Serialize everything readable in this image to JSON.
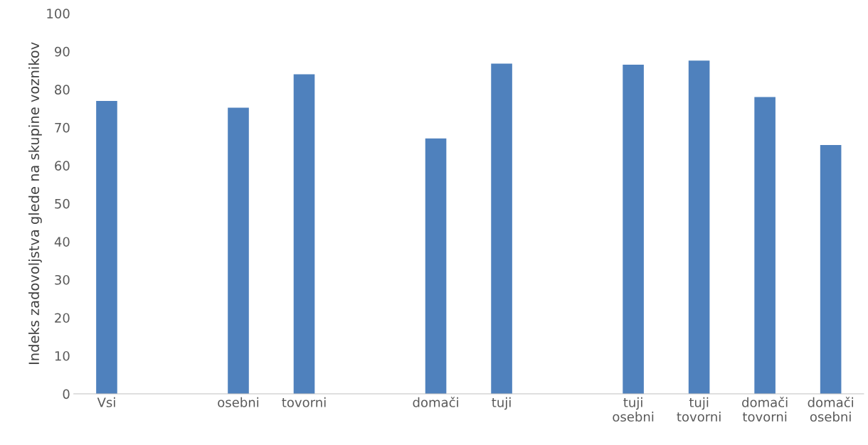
{
  "chart_data": {
    "type": "bar",
    "ylabel": "Indeks zadovoljstva glede na skupine voznikov",
    "categories": [
      "Vsi",
      null,
      "osebni",
      "tovorni",
      null,
      "domači",
      "tuji",
      null,
      "tuji\nosebni",
      "tuji\ntovorni",
      "domači\ntovorni",
      "domači\nosebni"
    ],
    "series": [
      {
        "color": "#4f81bd",
        "values": [
          77,
          null,
          75.2,
          84,
          null,
          67.1,
          86.8,
          null,
          86.5,
          87.6,
          78,
          65.4
        ]
      }
    ],
    "ylim": [
      0,
      100
    ],
    "yticks": [
      0,
      10,
      20,
      30,
      40,
      50,
      60,
      70,
      80,
      90,
      100
    ],
    "grid": false,
    "legend": false
  }
}
